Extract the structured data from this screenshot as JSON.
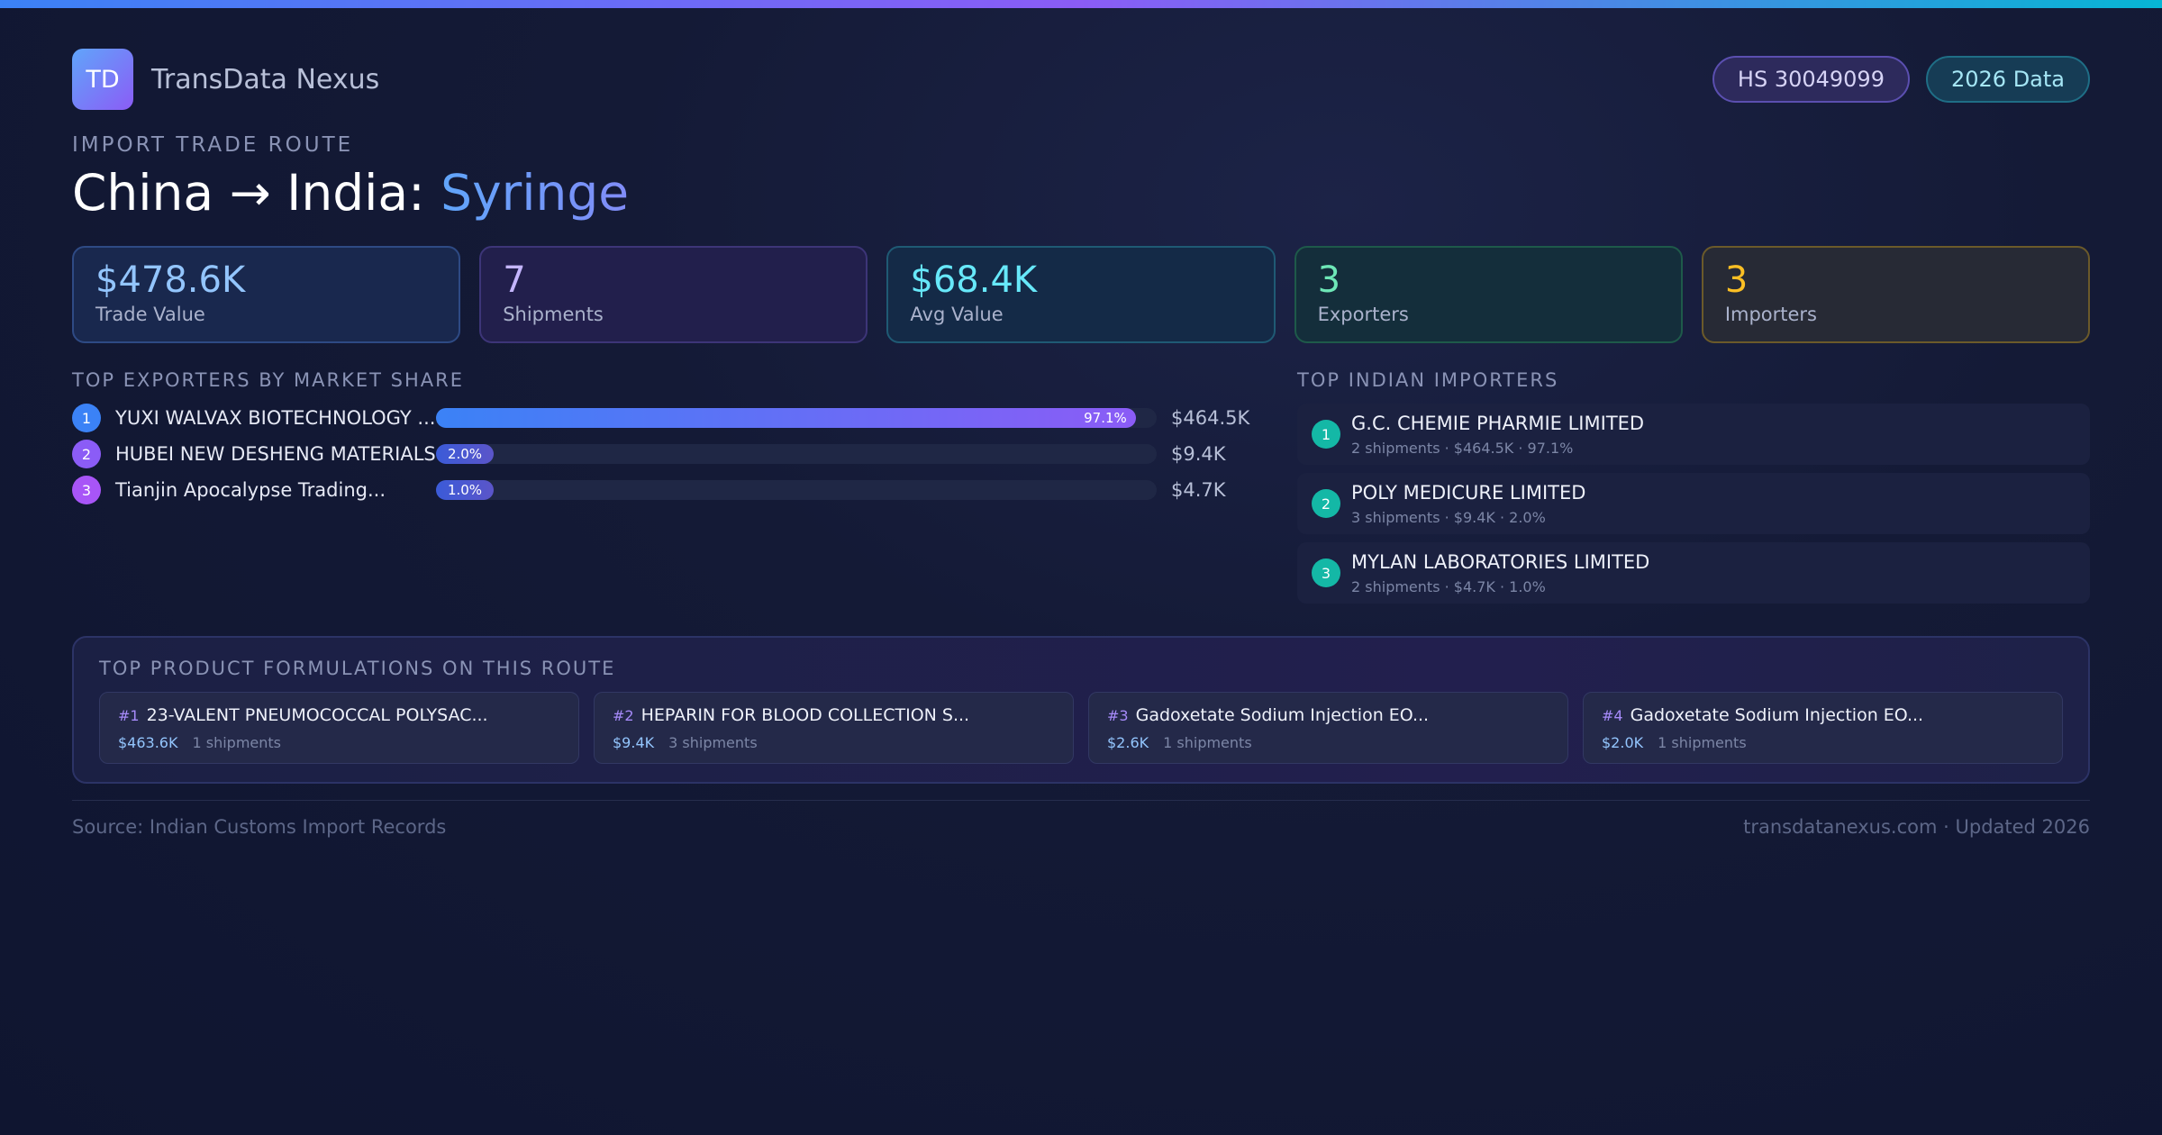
{
  "brand": {
    "logo_text": "TD",
    "name": "TransData Nexus"
  },
  "pills": {
    "hs_code": "HS 30049099",
    "data_year": "2026 Data"
  },
  "route": {
    "eyebrow": "IMPORT TRADE ROUTE",
    "title_prefix": "China → India: ",
    "product": "Syringe"
  },
  "stats": [
    {
      "value": "$478.6K",
      "label": "Trade Value"
    },
    {
      "value": "7",
      "label": "Shipments"
    },
    {
      "value": "$68.4K",
      "label": "Avg Value"
    },
    {
      "value": "3",
      "label": "Exporters"
    },
    {
      "value": "3",
      "label": "Importers"
    }
  ],
  "exporters": {
    "section_label": "TOP EXPORTERS BY MARKET SHARE",
    "rows": [
      {
        "rank": "1",
        "name": "YUXI WALVAX BIOTECHNOLOGY ...",
        "share": 97.1,
        "share_label": "97.1%",
        "value": "$464.5K",
        "color": "#3b82f6"
      },
      {
        "rank": "2",
        "name": "HUBEI NEW DESHENG MATERIALS",
        "share": 2.0,
        "share_label": "2.0%",
        "value": "$9.4K",
        "color": "#8b5cf6"
      },
      {
        "rank": "3",
        "name": "Tianjin Apocalypse Trading...",
        "share": 1.0,
        "share_label": "1.0%",
        "value": "$4.7K",
        "color": "#a855f7"
      }
    ]
  },
  "importers": {
    "section_label": "TOP INDIAN IMPORTERS",
    "rows": [
      {
        "rank": "1",
        "name": "G.C. CHEMIE PHARMIE LIMITED",
        "meta": "2 shipments · $464.5K · 97.1%"
      },
      {
        "rank": "2",
        "name": "POLY MEDICURE LIMITED",
        "meta": "3 shipments · $9.4K · 2.0%"
      },
      {
        "rank": "3",
        "name": "MYLAN LABORATORIES LIMITED",
        "meta": "2 shipments · $4.7K · 1.0%"
      }
    ]
  },
  "formulations": {
    "section_label": "TOP PRODUCT FORMULATIONS ON THIS ROUTE",
    "items": [
      {
        "num": "#1",
        "name": "23-VALENT PNEUMOCOCCAL POLYSAC...",
        "value": "$463.6K",
        "shipments": "1 shipments"
      },
      {
        "num": "#2",
        "name": "HEPARIN FOR BLOOD COLLECTION S...",
        "value": "$9.4K",
        "shipments": "3 shipments"
      },
      {
        "num": "#3",
        "name": "Gadoxetate Sodium Injection EO...",
        "value": "$2.6K",
        "shipments": "1 shipments"
      },
      {
        "num": "#4",
        "name": "Gadoxetate Sodium Injection EO...",
        "value": "$2.0K",
        "shipments": "1 shipments"
      }
    ]
  },
  "footer": {
    "source": "Source: Indian Customs Import Records",
    "site": "transdatanexus.com · Updated 2026"
  }
}
